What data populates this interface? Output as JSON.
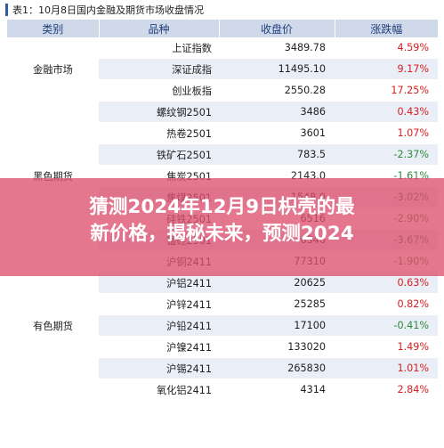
{
  "title": "表1：10月8日国内金融及期货市场收盘情况",
  "table": {
    "headers": [
      "类别",
      "品种",
      "收盘价",
      "涨跌幅"
    ],
    "groups": [
      {
        "category": "金融市场",
        "rows": [
          {
            "name": "上证指数",
            "price": "3489.78",
            "change": "4.59%",
            "dir": "up"
          },
          {
            "name": "深证成指",
            "price": "11495.10",
            "change": "9.17%",
            "dir": "up"
          },
          {
            "name": "创业板指",
            "price": "2550.28",
            "change": "17.25%",
            "dir": "up"
          }
        ]
      },
      {
        "category": "黑色期货",
        "rows": [
          {
            "name": "螺纹钢2501",
            "price": "3486",
            "change": "0.43%",
            "dir": "up"
          },
          {
            "name": "热卷2501",
            "price": "3601",
            "change": "1.07%",
            "dir": "up"
          },
          {
            "name": "铁矿石2501",
            "price": "783.5",
            "change": "-2.37%",
            "dir": "down"
          },
          {
            "name": "焦炭2501",
            "price": "2143.0",
            "change": "-1.61%",
            "dir": "down"
          },
          {
            "name": "焦煤2501",
            "price": "1548.0",
            "change": "-3.02%",
            "dir": "down"
          },
          {
            "name": "硅铁2501",
            "price": "6516",
            "change": "-2.90%",
            "dir": "down"
          },
          {
            "name": "锰硅2501",
            "price": "6346",
            "change": "-3.67%",
            "dir": "down"
          }
        ]
      },
      {
        "category": "有色期货",
        "rows": [
          {
            "name": "沪铜2411",
            "price": "77310",
            "change": "-1.90%",
            "dir": "down"
          },
          {
            "name": "沪铝2411",
            "price": "20625",
            "change": "0.63%",
            "dir": "up"
          },
          {
            "name": "沪锌2411",
            "price": "25285",
            "change": "0.82%",
            "dir": "up"
          },
          {
            "name": "沪铅2411",
            "price": "17100",
            "change": "-0.41%",
            "dir": "down"
          },
          {
            "name": "沪镍2411",
            "price": "133020",
            "change": "1.49%",
            "dir": "up"
          },
          {
            "name": "沪锡2411",
            "price": "265830",
            "change": "1.01%",
            "dir": "up"
          },
          {
            "name": "氧化铝2411",
            "price": "4314",
            "change": "2.84%",
            "dir": "up"
          }
        ]
      }
    ]
  },
  "banner": {
    "line1": "猜测2024年12月9日枳壳的最",
    "line2": "新价格，揭秘未来，预测2024"
  },
  "colors": {
    "up": "#d81e1e",
    "down": "#2e8b3a",
    "header_bg": "#cfd9ea",
    "stripe": "#eaeef6",
    "banner": "#dc506e"
  }
}
